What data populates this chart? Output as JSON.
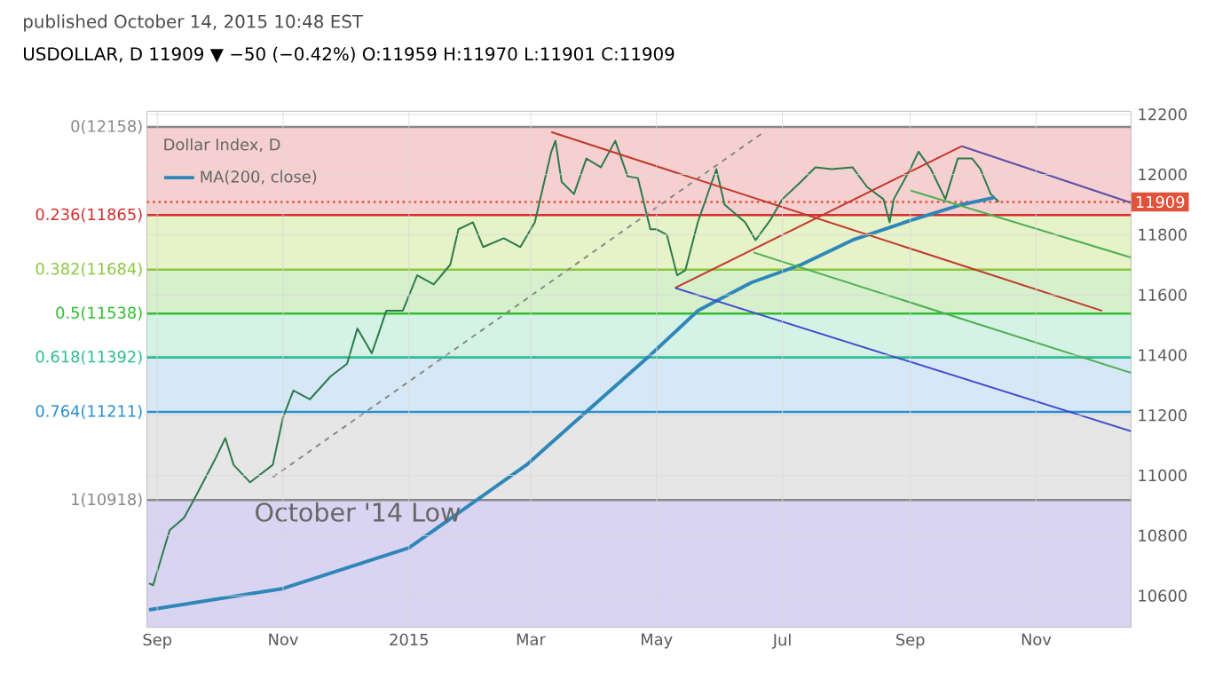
{
  "chart_data": {
    "type": "line",
    "title": "Dollar Index, D",
    "subtitle": "USDOLLAR, D  11909 ▼ −50 (−0.42%) O:11959 H:11970 L:11901 C:11909",
    "annotations": [
      "published October 14, 2015 10:48 EST",
      {
        "text": "October '14 Low",
        "x": "2014-10-17",
        "y": 10918
      }
    ],
    "xlim": [
      "2014-08-27",
      "2015-12-17"
    ],
    "xticks": [
      {
        "value": "2014-09-01",
        "label": "Sep"
      },
      {
        "value": "2014-11-01",
        "label": "Nov"
      },
      {
        "value": "2015-01-01",
        "label": "2015"
      },
      {
        "value": "2015-03-01",
        "label": "Mar"
      },
      {
        "value": "2015-05-01",
        "label": "May"
      },
      {
        "value": "2015-07-01",
        "label": "Jul"
      },
      {
        "value": "2015-09-01",
        "label": "Sep"
      },
      {
        "value": "2015-11-01",
        "label": "Nov"
      }
    ],
    "ylim": [
      10495,
      12210
    ],
    "yticks": [
      10600,
      10800,
      11000,
      11200,
      11400,
      11600,
      11800,
      12000,
      12200
    ],
    "grid": true,
    "legend": "top left",
    "series": [
      {
        "color": "#2b7a4b",
        "x": [
          "2014-08-28",
          "2014-08-30",
          "2014-09-07",
          "2014-09-14",
          "2014-09-20",
          "2014-09-29",
          "2014-10-04",
          "2014-10-08",
          "2014-10-16",
          "2014-10-27",
          "2014-11-01",
          "2014-11-06",
          "2014-11-14",
          "2014-11-24",
          "2014-12-02",
          "2014-12-07",
          "2014-12-14",
          "2014-12-17",
          "2014-12-21",
          "2014-12-29",
          "2015-01-05",
          "2015-01-13",
          "2015-01-21",
          "2015-01-25",
          "2015-02-01",
          "2015-02-06",
          "2015-02-16",
          "2015-02-24",
          "2015-03-03",
          "2015-03-11",
          "2015-03-13",
          "2015-03-16",
          "2015-03-22",
          "2015-03-28",
          "2015-04-04",
          "2015-04-11",
          "2015-04-17",
          "2015-04-22",
          "2015-04-28",
          "2015-05-01",
          "2015-05-06",
          "2015-05-11",
          "2015-05-15",
          "2015-05-21",
          "2015-05-30",
          "2015-06-03",
          "2015-06-13",
          "2015-06-18",
          "2015-06-25",
          "2015-07-01",
          "2015-07-10",
          "2015-07-17",
          "2015-07-25",
          "2015-08-04",
          "2015-08-11",
          "2015-08-19",
          "2015-08-22",
          "2015-08-24",
          "2015-09-01",
          "2015-09-05",
          "2015-09-11",
          "2015-09-18",
          "2015-09-24",
          "2015-10-01",
          "2015-10-05",
          "2015-10-10",
          "2015-10-14"
        ],
        "values": [
          10641,
          10635,
          10818,
          10859,
          10935,
          11053,
          11124,
          11035,
          10977,
          11035,
          11194,
          11282,
          11253,
          11329,
          11371,
          11488,
          11406,
          11465,
          11547,
          11547,
          11665,
          11635,
          11700,
          11818,
          11841,
          11759,
          11788,
          11759,
          11841,
          12076,
          12112,
          11976,
          11935,
          12053,
          12024,
          12112,
          11994,
          11988,
          11818,
          11818,
          11800,
          11665,
          11682,
          11841,
          12018,
          11900,
          11841,
          11782,
          11847,
          11918,
          11976,
          12024,
          12018,
          12024,
          11959,
          11918,
          11841,
          11918,
          12018,
          12076,
          12018,
          11918,
          12053,
          12053,
          12018,
          11935,
          11909
        ]
      },
      {
        "name": "MA(200, close)",
        "color": "#2f86b8",
        "x": [
          "2014-08-28",
          "2014-11-01",
          "2015-01-01",
          "2015-02-27",
          "2015-03-28",
          "2015-04-28",
          "2015-05-21",
          "2015-06-16",
          "2015-07-10",
          "2015-08-04",
          "2015-09-01",
          "2015-09-26",
          "2015-10-12"
        ],
        "values": [
          10553,
          10624,
          10759,
          11035,
          11212,
          11400,
          11547,
          11641,
          11700,
          11782,
          11847,
          11900,
          11924
        ]
      },
      {
        "color": "#888888",
        "line_style": "dashed",
        "x": [
          "2014-10-27",
          "2015-06-22"
        ],
        "values": [
          10994,
          12141
        ]
      },
      {
        "color": "#c0392b",
        "x": [
          "2015-03-11",
          "2015-12-03"
        ],
        "values": [
          12141,
          11547
        ]
      },
      {
        "color": "#c0392b",
        "x": [
          "2015-05-10",
          "2015-09-26"
        ],
        "values": [
          11623,
          12094
        ]
      },
      {
        "color": "#3f48cc",
        "x": [
          "2015-05-10",
          "2015-12-17"
        ],
        "values": [
          11623,
          11147
        ]
      },
      {
        "color": "#4caf50",
        "x": [
          "2015-06-17",
          "2015-12-17"
        ],
        "values": [
          11741,
          11341
        ]
      },
      {
        "color": "#5b4fa8",
        "x": [
          "2015-09-26",
          "2015-12-17"
        ],
        "values": [
          12094,
          11906
        ]
      },
      {
        "color": "#4caf50",
        "x": [
          "2015-09-01",
          "2015-12-17"
        ],
        "values": [
          11947,
          11724
        ]
      }
    ],
    "bands": [
      {
        "axis": "y",
        "from": 11865,
        "to": 12158,
        "color": "#f6d0d0"
      },
      {
        "axis": "y",
        "from": 11684,
        "to": 11865,
        "color": "#e6f2c8"
      },
      {
        "axis": "y",
        "from": 11538,
        "to": 11684,
        "color": "#d6f0cc"
      },
      {
        "axis": "y",
        "from": 11392,
        "to": 11538,
        "color": "#d4f3e6"
      },
      {
        "axis": "y",
        "from": 11211,
        "to": 11392,
        "color": "#d6e8f5"
      },
      {
        "axis": "y",
        "from": 10918,
        "to": 11211,
        "color": "#e6e6e6"
      },
      {
        "axis": "y",
        "from": 10495,
        "to": 10918,
        "color": "#d8d4f2"
      }
    ],
    "ref_lines": [
      {
        "axis": "y",
        "value": 12158,
        "label": "0(12158)",
        "color": "#888888"
      },
      {
        "axis": "y",
        "value": 11865,
        "label": "0.236(11865)",
        "color": "#d32f2f"
      },
      {
        "axis": "y",
        "value": 11684,
        "label": "0.382(11684)",
        "color": "#8cc63f"
      },
      {
        "axis": "y",
        "value": 11538,
        "label": "0.5(11538)",
        "color": "#2fbf2f"
      },
      {
        "axis": "y",
        "value": 11392,
        "label": "0.618(11392)",
        "color": "#2bbf8f"
      },
      {
        "axis": "y",
        "value": 11211,
        "label": "0.764(11211)",
        "color": "#2b8fcf"
      },
      {
        "axis": "y",
        "value": 10918,
        "label": "1(10918)",
        "color": "#888888"
      },
      {
        "axis": "y",
        "value": 11909,
        "label": "11909",
        "color": "#e0523a",
        "line_style": "dotted"
      }
    ]
  }
}
